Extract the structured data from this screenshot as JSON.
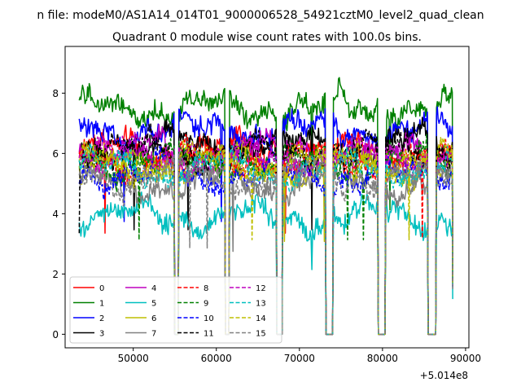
{
  "chart_data": {
    "type": "line",
    "suptitle": "n file: modeM0/AS1A14_014T01_9000006528_54921cztM0_level2_quad_clean",
    "title": "Quadrant 0 module wise count rates with 100.0s bins.",
    "xlabel": "",
    "ylabel": "",
    "x_offset_label": "+5.014e8",
    "xlim": [
      41800,
      90400
    ],
    "ylim": [
      -0.45,
      9.55
    ],
    "x_ticks": [
      50000,
      60000,
      70000,
      80000,
      90000
    ],
    "x_tick_labels": [
      "50000",
      "60000",
      "70000",
      "80000",
      "90000"
    ],
    "y_ticks": [
      0,
      2,
      4,
      6,
      8
    ],
    "y_tick_labels": [
      "0",
      "2",
      "4",
      "6",
      "8"
    ],
    "bin_seconds": 100.0,
    "x_range": [
      43500,
      88400
    ],
    "gaps": [
      [
        55000,
        55400
      ],
      [
        61100,
        61500
      ],
      [
        67300,
        67900
      ],
      [
        73200,
        74000
      ],
      [
        79500,
        80300
      ],
      [
        85500,
        86400
      ]
    ],
    "legend": {
      "location": "lower-left",
      "columns": 4
    },
    "series": [
      {
        "name": "0",
        "color": "#ff0000",
        "dash": "solid",
        "mean": 6.1
      },
      {
        "name": "1",
        "color": "#008000",
        "dash": "solid",
        "mean": 7.5
      },
      {
        "name": "2",
        "color": "#0000ff",
        "dash": "solid",
        "mean": 6.8
      },
      {
        "name": "3",
        "color": "#000000",
        "dash": "solid",
        "mean": 6.3
      },
      {
        "name": "4",
        "color": "#bf00bf",
        "dash": "solid",
        "mean": 6.0
      },
      {
        "name": "5",
        "color": "#00bfbf",
        "dash": "solid",
        "mean": 3.9
      },
      {
        "name": "6",
        "color": "#bfbf00",
        "dash": "solid",
        "mean": 5.6
      },
      {
        "name": "7",
        "color": "#808080",
        "dash": "solid",
        "mean": 5.0
      },
      {
        "name": "8",
        "color": "#ff0000",
        "dash": "dashed",
        "mean": 5.8
      },
      {
        "name": "9",
        "color": "#008000",
        "dash": "dashed",
        "mean": 5.7
      },
      {
        "name": "10",
        "color": "#0000ff",
        "dash": "dashed",
        "mean": 5.3
      },
      {
        "name": "11",
        "color": "#000000",
        "dash": "dashed",
        "mean": 6.1
      },
      {
        "name": "12",
        "color": "#bf00bf",
        "dash": "dashed",
        "mean": 5.9
      },
      {
        "name": "13",
        "color": "#00bfbf",
        "dash": "dashed",
        "mean": 5.5
      },
      {
        "name": "14",
        "color": "#bfbf00",
        "dash": "dashed",
        "mean": 5.7
      },
      {
        "name": "15",
        "color": "#808080",
        "dash": "dashed",
        "mean": 5.2
      }
    ]
  }
}
